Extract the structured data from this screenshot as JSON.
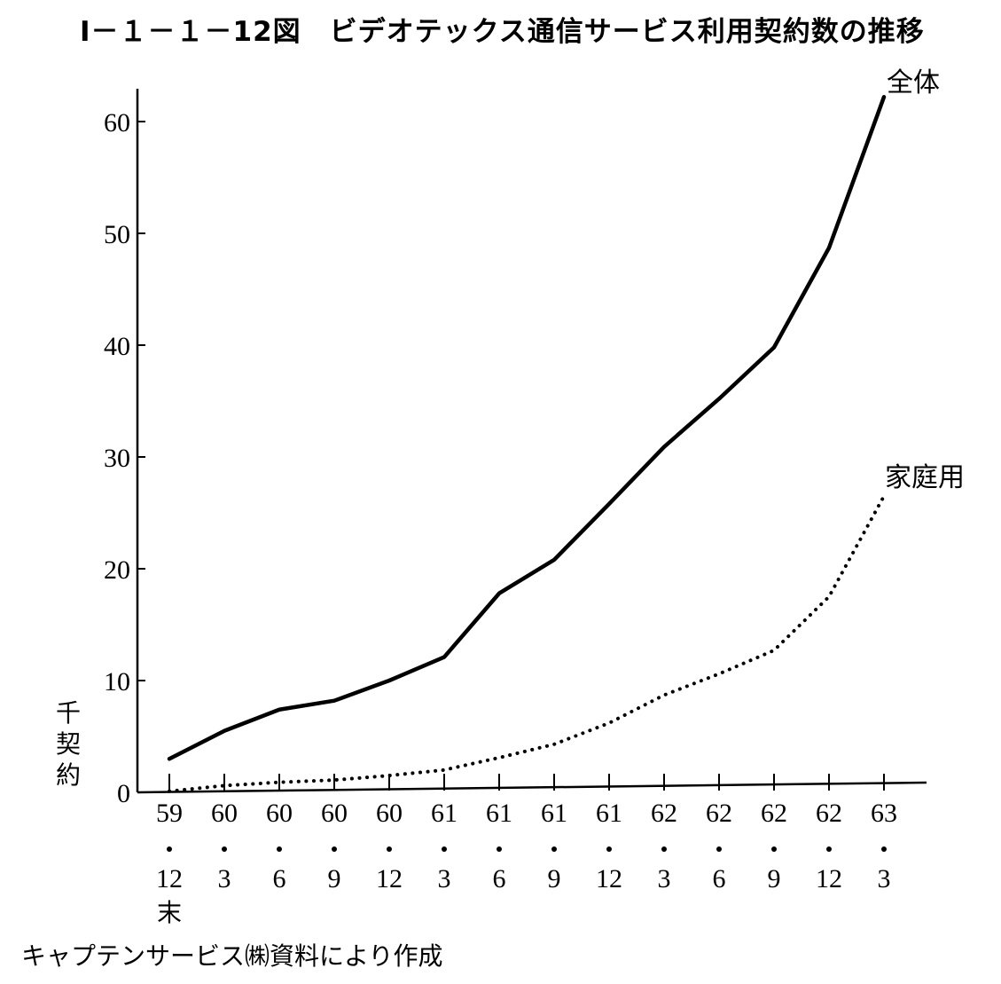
{
  "title": "Ⅰ－１－１－12図　ビデオテックス通信サービス利用契約数の推移",
  "source_note": "キャプテンサービス㈱資料により作成",
  "chart_data": {
    "type": "line",
    "ylabel": "千契約",
    "ylim": [
      0,
      63
    ],
    "y_ticks": [
      "0",
      "10",
      "20",
      "30",
      "40",
      "50",
      "60"
    ],
    "categories": [
      {
        "year": "59",
        "month": "12",
        "note": "末"
      },
      {
        "year": "60",
        "month": "3",
        "note": ""
      },
      {
        "year": "60",
        "month": "6",
        "note": ""
      },
      {
        "year": "60",
        "month": "9",
        "note": ""
      },
      {
        "year": "60",
        "month": "12",
        "note": ""
      },
      {
        "year": "61",
        "month": "3",
        "note": ""
      },
      {
        "year": "61",
        "month": "6",
        "note": ""
      },
      {
        "year": "61",
        "month": "9",
        "note": ""
      },
      {
        "year": "61",
        "month": "12",
        "note": ""
      },
      {
        "year": "62",
        "month": "3",
        "note": ""
      },
      {
        "year": "62",
        "month": "6",
        "note": ""
      },
      {
        "year": "62",
        "month": "9",
        "note": ""
      },
      {
        "year": "62",
        "month": "12",
        "note": ""
      },
      {
        "year": "63",
        "month": "3",
        "note": ""
      }
    ],
    "series": [
      {
        "name": "全体",
        "style": "solid",
        "values": [
          3.0,
          5.5,
          7.4,
          8.2,
          10.0,
          12.1,
          17.8,
          20.8,
          25.8,
          30.9,
          35.2,
          39.8,
          48.7,
          62.2
        ]
      },
      {
        "name": "家庭用",
        "style": "dotted",
        "values": [
          0.1,
          0.6,
          0.9,
          1.1,
          1.5,
          2.0,
          3.1,
          4.3,
          6.2,
          8.7,
          10.6,
          12.7,
          17.5,
          26.5
        ]
      }
    ]
  }
}
